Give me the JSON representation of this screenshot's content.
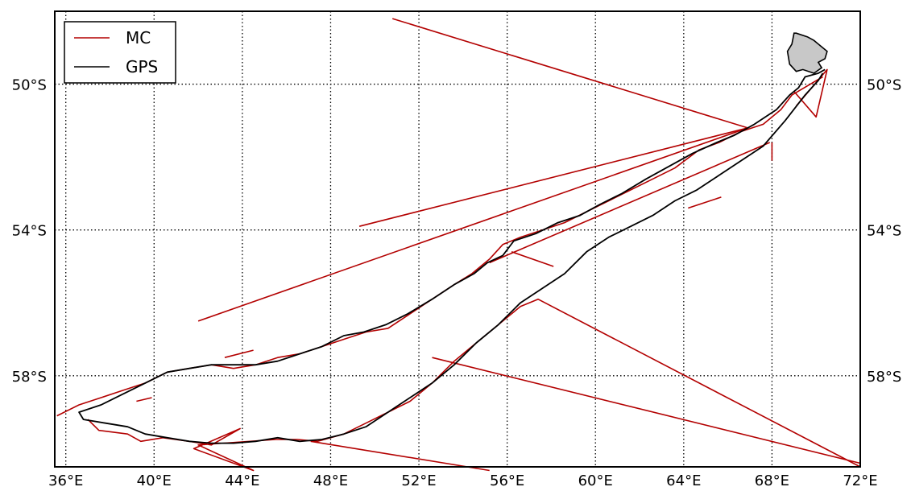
{
  "map": {
    "lon_range": [
      35.5,
      72.0
    ],
    "lat_range": [
      -60.5,
      -48.0
    ],
    "grid_lons": [
      36,
      40,
      44,
      48,
      52,
      56,
      60,
      64,
      68,
      72
    ],
    "grid_lats": [
      -50,
      -54,
      -58
    ],
    "x_tick_labels": [
      "36°E",
      "40°E",
      "44°E",
      "48°E",
      "52°E",
      "56°E",
      "60°E",
      "64°E",
      "68°E",
      "72°E"
    ],
    "y_tick_labels_left": [
      "50°S",
      "54°S",
      "58°S"
    ],
    "y_tick_labels_right": [
      "50°S",
      "54°S",
      "58°S"
    ],
    "grid": true,
    "legend_position": "top-left",
    "colors": {
      "MC": "#b30000",
      "GPS": "#000000",
      "island_fill": "#c8c8c8"
    },
    "legend": [
      {
        "label": "MC",
        "color": "#b30000"
      },
      {
        "label": "GPS",
        "color": "#000000"
      }
    ],
    "island": [
      [
        69.6,
        -48.7
      ],
      [
        69.9,
        -48.8
      ],
      [
        70.3,
        -49.0
      ],
      [
        70.5,
        -49.1
      ],
      [
        70.4,
        -49.3
      ],
      [
        70.1,
        -49.4
      ],
      [
        70.25,
        -49.55
      ],
      [
        69.9,
        -49.7
      ],
      [
        69.4,
        -49.6
      ],
      [
        69.1,
        -49.65
      ],
      [
        68.8,
        -49.45
      ],
      [
        68.7,
        -49.1
      ],
      [
        68.9,
        -48.9
      ],
      [
        69.0,
        -48.6
      ],
      [
        69.1,
        -48.6
      ]
    ],
    "gps_track": [
      [
        70.4,
        -49.6
      ],
      [
        70.1,
        -49.7
      ],
      [
        69.5,
        -49.8
      ],
      [
        69.2,
        -50.1
      ],
      [
        68.8,
        -50.3
      ],
      [
        68.2,
        -50.7
      ],
      [
        67.2,
        -51.1
      ],
      [
        66.3,
        -51.4
      ],
      [
        65.5,
        -51.6
      ],
      [
        64.4,
        -51.9
      ],
      [
        63.2,
        -52.3
      ],
      [
        62.3,
        -52.6
      ],
      [
        61.2,
        -53.0
      ],
      [
        60.2,
        -53.3
      ],
      [
        59.3,
        -53.6
      ],
      [
        58.3,
        -53.8
      ],
      [
        57.3,
        -54.1
      ],
      [
        56.3,
        -54.3
      ],
      [
        55.8,
        -54.7
      ],
      [
        55.1,
        -54.9
      ],
      [
        54.5,
        -55.2
      ],
      [
        53.6,
        -55.5
      ],
      [
        52.6,
        -55.9
      ],
      [
        51.5,
        -56.3
      ],
      [
        50.5,
        -56.6
      ],
      [
        49.5,
        -56.8
      ],
      [
        48.6,
        -56.9
      ],
      [
        47.6,
        -57.2
      ],
      [
        46.6,
        -57.4
      ],
      [
        45.6,
        -57.6
      ],
      [
        44.6,
        -57.7
      ],
      [
        43.6,
        -57.7
      ],
      [
        42.6,
        -57.7
      ],
      [
        41.6,
        -57.8
      ],
      [
        40.6,
        -57.9
      ],
      [
        39.6,
        -58.2
      ],
      [
        38.6,
        -58.5
      ],
      [
        37.6,
        -58.8
      ],
      [
        36.6,
        -59.0
      ],
      [
        36.8,
        -59.2
      ],
      [
        37.8,
        -59.3
      ],
      [
        38.8,
        -59.4
      ],
      [
        39.6,
        -59.6
      ],
      [
        40.6,
        -59.7
      ],
      [
        41.6,
        -59.8
      ],
      [
        42.6,
        -59.85
      ],
      [
        43.6,
        -59.85
      ],
      [
        44.6,
        -59.8
      ],
      [
        45.6,
        -59.7
      ],
      [
        46.6,
        -59.8
      ],
      [
        47.6,
        -59.75
      ],
      [
        48.6,
        -59.6
      ],
      [
        49.6,
        -59.4
      ],
      [
        50.6,
        -59.0
      ],
      [
        51.6,
        -58.6
      ],
      [
        52.6,
        -58.2
      ],
      [
        53.6,
        -57.7
      ],
      [
        54.6,
        -57.1
      ],
      [
        55.6,
        -56.6
      ],
      [
        56.6,
        -56.0
      ],
      [
        57.6,
        -55.6
      ],
      [
        58.6,
        -55.2
      ],
      [
        59.6,
        -54.6
      ],
      [
        60.6,
        -54.2
      ],
      [
        61.6,
        -53.9
      ],
      [
        62.6,
        -53.6
      ],
      [
        63.6,
        -53.2
      ],
      [
        64.6,
        -52.9
      ],
      [
        65.6,
        -52.5
      ],
      [
        66.6,
        -52.1
      ],
      [
        67.6,
        -51.7
      ],
      [
        68.6,
        -51.0
      ],
      [
        69.5,
        -50.3
      ],
      [
        70.1,
        -49.9
      ],
      [
        70.3,
        -49.7
      ]
    ],
    "mc_tracks": [
      [
        [
          70.3,
          -49.8
        ],
        [
          68.9,
          -50.3
        ],
        [
          68.4,
          -50.7
        ],
        [
          67.6,
          -51.1
        ],
        [
          66.6,
          -51.3
        ],
        [
          65.6,
          -51.6
        ],
        [
          64.7,
          -51.8
        ],
        [
          63.6,
          -52.3
        ],
        [
          62.6,
          -52.6
        ],
        [
          61.6,
          -52.9
        ],
        [
          60.6,
          -53.2
        ],
        [
          59.6,
          -53.5
        ],
        [
          58.6,
          -53.8
        ],
        [
          57.6,
          -54.0
        ],
        [
          56.6,
          -54.2
        ],
        [
          55.8,
          -54.4
        ],
        [
          55.2,
          -54.8
        ],
        [
          54.4,
          -55.2
        ],
        [
          53.6,
          -55.5
        ],
        [
          52.6,
          -55.9
        ],
        [
          51.6,
          -56.3
        ],
        [
          50.6,
          -56.7
        ],
        [
          49.6,
          -56.8
        ],
        [
          48.6,
          -57.0
        ],
        [
          47.6,
          -57.2
        ],
        [
          46.6,
          -57.4
        ],
        [
          45.6,
          -57.5
        ],
        [
          44.6,
          -57.7
        ],
        [
          43.6,
          -57.8
        ],
        [
          42.6,
          -57.7
        ],
        [
          41.6,
          -57.8
        ],
        [
          40.6,
          -57.9
        ],
        [
          39.6,
          -58.2
        ],
        [
          38.6,
          -58.4
        ],
        [
          37.6,
          -58.6
        ],
        [
          36.6,
          -58.8
        ],
        [
          35.6,
          -59.1
        ]
      ],
      [
        [
          50.8,
          -48.2
        ],
        [
          66.9,
          -51.2
        ],
        [
          49.3,
          -53.9
        ]
      ],
      [
        [
          66.9,
          -51.2
        ],
        [
          42.0,
          -56.5
        ]
      ],
      [
        [
          67.9,
          -51.6
        ],
        [
          55.2,
          -54.9
        ]
      ],
      [
        [
          37.0,
          -59.2
        ],
        [
          37.5,
          -59.5
        ],
        [
          38.8,
          -59.6
        ],
        [
          39.4,
          -59.8
        ],
        [
          40.4,
          -59.7
        ],
        [
          41.6,
          -59.8
        ],
        [
          42.6,
          -59.9
        ],
        [
          43.9,
          -59.45
        ],
        [
          41.8,
          -60.0
        ],
        [
          44.5,
          -60.6
        ],
        [
          42.0,
          -59.9
        ],
        [
          45.5,
          -59.75
        ],
        [
          46.5,
          -59.75
        ],
        [
          47.4,
          -59.8
        ],
        [
          48.6,
          -59.6
        ],
        [
          49.6,
          -59.3
        ],
        [
          50.6,
          -59.0
        ],
        [
          51.6,
          -58.7
        ],
        [
          52.6,
          -58.2
        ],
        [
          53.6,
          -57.6
        ],
        [
          54.6,
          -57.1
        ],
        [
          55.6,
          -56.6
        ],
        [
          56.6,
          -56.1
        ],
        [
          57.4,
          -55.9
        ],
        [
          72.0,
          -60.5
        ]
      ],
      [
        [
          52.6,
          -57.5
        ],
        [
          72.0,
          -60.4
        ]
      ],
      [
        [
          47.1,
          -59.8
        ],
        [
          55.2,
          -60.6
        ]
      ],
      [
        [
          69.0,
          -50.2
        ],
        [
          70.0,
          -50.9
        ],
        [
          70.5,
          -49.6
        ],
        [
          69.1,
          -50.6
        ]
      ],
      [
        [
          68.0,
          -51.6
        ],
        [
          68.0,
          -52.1
        ]
      ],
      [
        [
          65.7,
          -53.1
        ],
        [
          64.2,
          -53.4
        ]
      ],
      [
        [
          56.2,
          -54.6
        ],
        [
          58.1,
          -55.0
        ]
      ],
      [
        [
          44.5,
          -57.3
        ],
        [
          43.2,
          -57.5
        ]
      ],
      [
        [
          39.9,
          -58.6
        ],
        [
          39.2,
          -58.7
        ]
      ]
    ]
  }
}
